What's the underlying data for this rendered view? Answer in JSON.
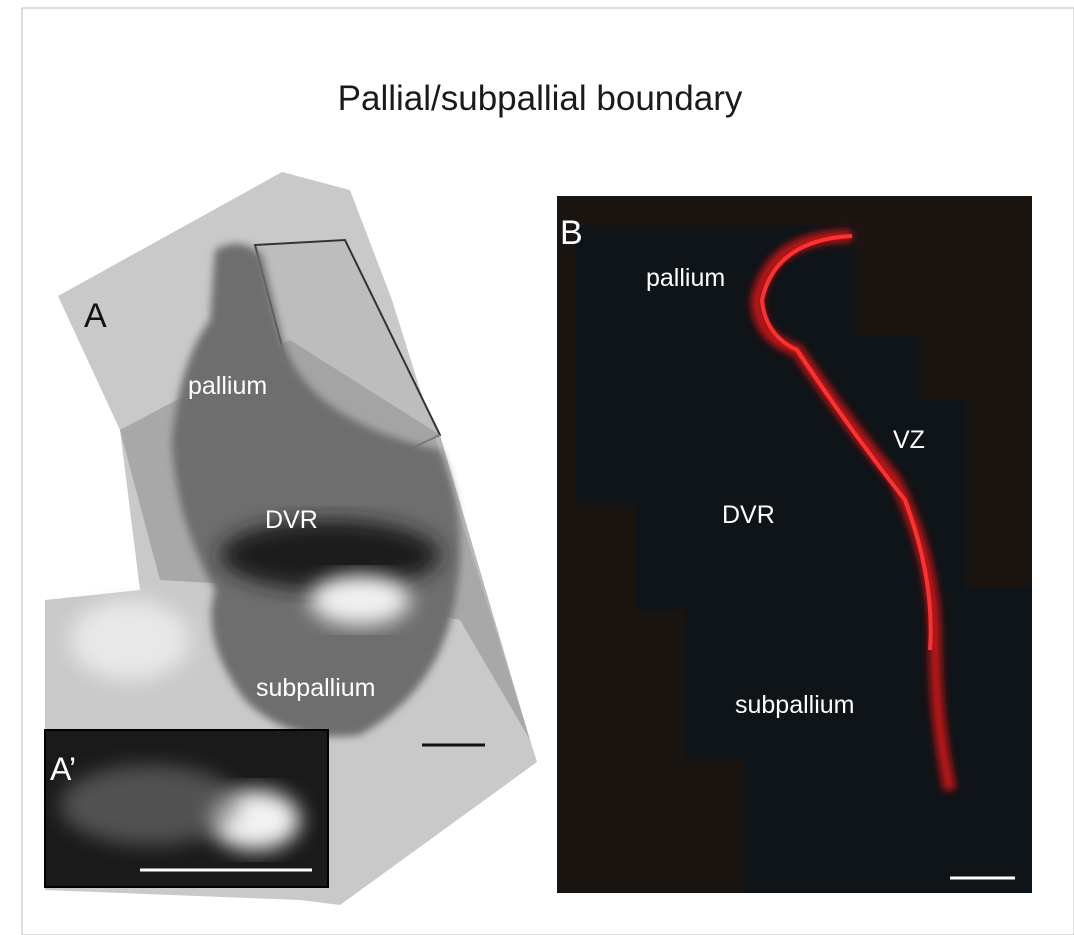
{
  "figure": {
    "title": "Pallial/subpallial boundary",
    "panels": [
      {
        "label": "A",
        "annotations": [
          "pallium",
          "DVR",
          "subpallium"
        ]
      },
      {
        "label": "A’"
      },
      {
        "label": "B",
        "annotations": [
          "pallium",
          "VZ",
          "DVR",
          "subpallium"
        ]
      }
    ]
  }
}
